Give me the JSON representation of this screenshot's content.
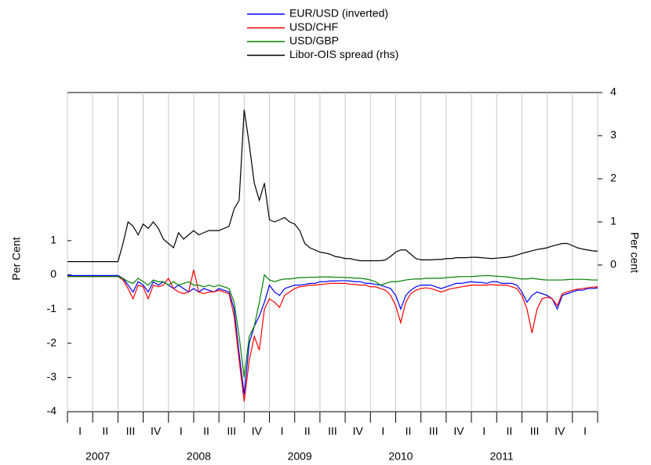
{
  "chart_data": {
    "type": "line",
    "y_label": "Per Cent",
    "y2_label": "Per cent",
    "xlim": [
      2007,
      2012.25
    ],
    "xticks": [
      2007,
      2007.25,
      2007.5,
      2007.75,
      2008,
      2008.25,
      2008.5,
      2008.75,
      2009,
      2009.25,
      2009.5,
      2009.75,
      2010,
      2010.25,
      2010.5,
      2010.75,
      2011,
      2011.25,
      2011.5,
      2011.75,
      2012,
      2012.25
    ],
    "x_grid": true,
    "x_quarter_labels": [
      {
        "value": 2007.125,
        "label": "I"
      },
      {
        "value": 2007.375,
        "label": "II"
      },
      {
        "value": 2007.625,
        "label": "III"
      },
      {
        "value": 2007.875,
        "label": "IV"
      },
      {
        "value": 2008.125,
        "label": "I"
      },
      {
        "value": 2008.375,
        "label": "II"
      },
      {
        "value": 2008.625,
        "label": "III"
      },
      {
        "value": 2008.875,
        "label": "IV"
      },
      {
        "value": 2009.125,
        "label": "I"
      },
      {
        "value": 2009.375,
        "label": "II"
      },
      {
        "value": 2009.625,
        "label": "III"
      },
      {
        "value": 2009.875,
        "label": "IV"
      },
      {
        "value": 2010.125,
        "label": "I"
      },
      {
        "value": 2010.375,
        "label": "II"
      },
      {
        "value": 2010.625,
        "label": "III"
      },
      {
        "value": 2010.875,
        "label": "IV"
      },
      {
        "value": 2011.125,
        "label": "I"
      },
      {
        "value": 2011.375,
        "label": "II"
      },
      {
        "value": 2011.625,
        "label": "III"
      },
      {
        "value": 2011.875,
        "label": "IV"
      },
      {
        "value": 2012.125,
        "label": "I"
      }
    ],
    "x_year_labels": [
      {
        "value": 2007.3,
        "label": "2007"
      },
      {
        "value": 2008.3,
        "label": "2008"
      },
      {
        "value": 2009.3,
        "label": "2009"
      },
      {
        "value": 2010.3,
        "label": "2010"
      },
      {
        "value": 2011.3,
        "label": "2011"
      }
    ],
    "ylim": [
      -4,
      5.33
    ],
    "yticks": [
      -4,
      -3,
      -2,
      -1,
      0,
      1
    ],
    "y2lim": [
      -3.4,
      4
    ],
    "y2ticks": [
      0,
      1,
      2,
      3,
      4
    ],
    "x": [
      2007,
      2007.05,
      2007.1,
      2007.15,
      2007.2,
      2007.25,
      2007.3,
      2007.35,
      2007.4,
      2007.45,
      2007.5,
      2007.55,
      2007.6,
      2007.65,
      2007.7,
      2007.75,
      2007.8,
      2007.85,
      2007.9,
      2007.95,
      2008,
      2008.05,
      2008.1,
      2008.15,
      2008.2,
      2008.25,
      2008.3,
      2008.35,
      2008.4,
      2008.45,
      2008.5,
      2008.55,
      2008.6,
      2008.65,
      2008.7,
      2008.75,
      2008.8,
      2008.85,
      2008.9,
      2008.95,
      2009,
      2009.05,
      2009.1,
      2009.15,
      2009.2,
      2009.25,
      2009.3,
      2009.35,
      2009.4,
      2009.45,
      2009.5,
      2009.55,
      2009.6,
      2009.65,
      2009.7,
      2009.75,
      2009.8,
      2009.85,
      2009.9,
      2009.95,
      2010,
      2010.05,
      2010.1,
      2010.15,
      2010.2,
      2010.25,
      2010.3,
      2010.35,
      2010.4,
      2010.45,
      2010.5,
      2010.55,
      2010.6,
      2010.65,
      2010.7,
      2010.75,
      2010.8,
      2010.85,
      2010.9,
      2010.95,
      2011,
      2011.05,
      2011.1,
      2011.15,
      2011.2,
      2011.25,
      2011.3,
      2011.35,
      2011.4,
      2011.45,
      2011.5,
      2011.55,
      2011.6,
      2011.65,
      2011.7,
      2011.75,
      2011.8,
      2011.85,
      2011.9,
      2011.95,
      2012,
      2012.05,
      2012.1,
      2012.15,
      2012.2,
      2012.25
    ],
    "series": [
      {
        "name": "EUR/USD (inverted)",
        "color": "#0000ff",
        "values": [
          -0.02,
          -0.02,
          -0.02,
          -0.02,
          -0.02,
          -0.02,
          -0.02,
          -0.02,
          -0.02,
          -0.02,
          -0.02,
          -0.1,
          -0.3,
          -0.5,
          -0.2,
          -0.3,
          -0.5,
          -0.2,
          -0.3,
          -0.2,
          -0.3,
          -0.4,
          -0.3,
          -0.4,
          -0.5,
          -0.4,
          -0.5,
          -0.4,
          -0.45,
          -0.5,
          -0.4,
          -0.45,
          -0.5,
          -1.0,
          -2.3,
          -3.5,
          -2.0,
          -1.5,
          -1.2,
          -0.8,
          -0.3,
          -0.5,
          -0.6,
          -0.4,
          -0.35,
          -0.3,
          -0.3,
          -0.28,
          -0.25,
          -0.25,
          -0.2,
          -0.2,
          -0.18,
          -0.18,
          -0.17,
          -0.17,
          -0.18,
          -0.2,
          -0.2,
          -0.25,
          -0.25,
          -0.28,
          -0.3,
          -0.35,
          -0.4,
          -0.6,
          -1.0,
          -0.6,
          -0.45,
          -0.35,
          -0.3,
          -0.3,
          -0.3,
          -0.35,
          -0.4,
          -0.35,
          -0.3,
          -0.25,
          -0.25,
          -0.22,
          -0.2,
          -0.22,
          -0.22,
          -0.25,
          -0.2,
          -0.2,
          -0.25,
          -0.25,
          -0.25,
          -0.3,
          -0.5,
          -0.8,
          -0.6,
          -0.5,
          -0.55,
          -0.6,
          -0.7,
          -1.0,
          -0.6,
          -0.55,
          -0.5,
          -0.45,
          -0.45,
          -0.4,
          -0.4,
          -0.38
        ]
      },
      {
        "name": "USD/CHF",
        "color": "#ff0000",
        "values": [
          -0.05,
          -0.05,
          -0.05,
          -0.05,
          -0.05,
          -0.05,
          -0.05,
          -0.05,
          -0.05,
          -0.05,
          -0.05,
          -0.15,
          -0.4,
          -0.7,
          -0.3,
          -0.35,
          -0.7,
          -0.3,
          -0.35,
          -0.3,
          -0.1,
          -0.4,
          -0.5,
          -0.55,
          -0.5,
          0.15,
          -0.5,
          -0.55,
          -0.5,
          -0.5,
          -0.45,
          -0.5,
          -0.55,
          -1.2,
          -2.5,
          -3.7,
          -2.5,
          -1.8,
          -2.2,
          -1.0,
          -0.7,
          -0.8,
          -0.95,
          -0.6,
          -0.5,
          -0.4,
          -0.35,
          -0.33,
          -0.3,
          -0.3,
          -0.28,
          -0.27,
          -0.25,
          -0.25,
          -0.25,
          -0.25,
          -0.27,
          -0.28,
          -0.3,
          -0.3,
          -0.35,
          -0.35,
          -0.4,
          -0.45,
          -0.6,
          -0.9,
          -1.4,
          -0.8,
          -0.55,
          -0.45,
          -0.4,
          -0.38,
          -0.4,
          -0.45,
          -0.5,
          -0.45,
          -0.4,
          -0.38,
          -0.35,
          -0.33,
          -0.3,
          -0.3,
          -0.3,
          -0.3,
          -0.28,
          -0.3,
          -0.3,
          -0.3,
          -0.35,
          -0.4,
          -0.6,
          -1.0,
          -1.7,
          -1.0,
          -0.7,
          -0.65,
          -0.7,
          -0.9,
          -0.55,
          -0.5,
          -0.45,
          -0.42,
          -0.4,
          -0.38,
          -0.36,
          -0.35
        ]
      },
      {
        "name": "USD/GBP",
        "color": "#008000",
        "values": [
          -0.05,
          -0.05,
          -0.05,
          -0.05,
          -0.05,
          -0.05,
          -0.05,
          -0.05,
          -0.05,
          -0.05,
          -0.05,
          -0.1,
          -0.2,
          -0.25,
          -0.1,
          -0.2,
          -0.3,
          -0.15,
          -0.2,
          -0.2,
          -0.3,
          -0.2,
          -0.3,
          -0.25,
          -0.2,
          -0.3,
          -0.3,
          -0.35,
          -0.3,
          -0.35,
          -0.3,
          -0.35,
          -0.4,
          -0.8,
          -1.8,
          -3.0,
          -1.8,
          -1.5,
          -0.8,
          0.0,
          -0.15,
          -0.2,
          -0.15,
          -0.12,
          -0.12,
          -0.1,
          -0.08,
          -0.08,
          -0.07,
          -0.07,
          -0.06,
          -0.06,
          -0.06,
          -0.07,
          -0.07,
          -0.08,
          -0.08,
          -0.1,
          -0.1,
          -0.12,
          -0.15,
          -0.2,
          -0.3,
          -0.25,
          -0.2,
          -0.2,
          -0.18,
          -0.15,
          -0.13,
          -0.12,
          -0.12,
          -0.1,
          -0.1,
          -0.1,
          -0.1,
          -0.08,
          -0.07,
          -0.06,
          -0.05,
          -0.05,
          -0.05,
          -0.04,
          -0.03,
          -0.02,
          -0.03,
          -0.04,
          -0.05,
          -0.06,
          -0.08,
          -0.1,
          -0.12,
          -0.12,
          -0.1,
          -0.12,
          -0.14,
          -0.15,
          -0.15,
          -0.15,
          -0.15,
          -0.14,
          -0.13,
          -0.13,
          -0.13,
          -0.14,
          -0.15,
          -0.15
        ]
      },
      {
        "name": "Libor-OIS spread (rhs)",
        "color": "#000000",
        "axis": "y2",
        "values": [
          0.08,
          0.08,
          0.08,
          0.08,
          0.08,
          0.08,
          0.08,
          0.08,
          0.08,
          0.08,
          0.08,
          0.5,
          1.0,
          0.9,
          0.7,
          0.95,
          0.85,
          1.0,
          0.85,
          0.6,
          0.5,
          0.4,
          0.75,
          0.6,
          0.7,
          0.8,
          0.7,
          0.75,
          0.8,
          0.8,
          0.8,
          0.85,
          0.9,
          1.3,
          1.5,
          3.6,
          2.8,
          1.9,
          1.5,
          1.9,
          1.05,
          1.0,
          1.05,
          1.1,
          1.0,
          0.95,
          0.8,
          0.5,
          0.4,
          0.35,
          0.3,
          0.28,
          0.25,
          0.2,
          0.18,
          0.15,
          0.15,
          0.12,
          0.1,
          0.1,
          0.1,
          0.1,
          0.1,
          0.12,
          0.2,
          0.3,
          0.35,
          0.35,
          0.25,
          0.15,
          0.12,
          0.12,
          0.12,
          0.13,
          0.13,
          0.15,
          0.15,
          0.17,
          0.17,
          0.17,
          0.18,
          0.18,
          0.17,
          0.16,
          0.15,
          0.16,
          0.17,
          0.18,
          0.2,
          0.23,
          0.27,
          0.3,
          0.33,
          0.36,
          0.38,
          0.4,
          0.44,
          0.47,
          0.5,
          0.5,
          0.45,
          0.4,
          0.37,
          0.35,
          0.33,
          0.32
        ]
      }
    ]
  }
}
